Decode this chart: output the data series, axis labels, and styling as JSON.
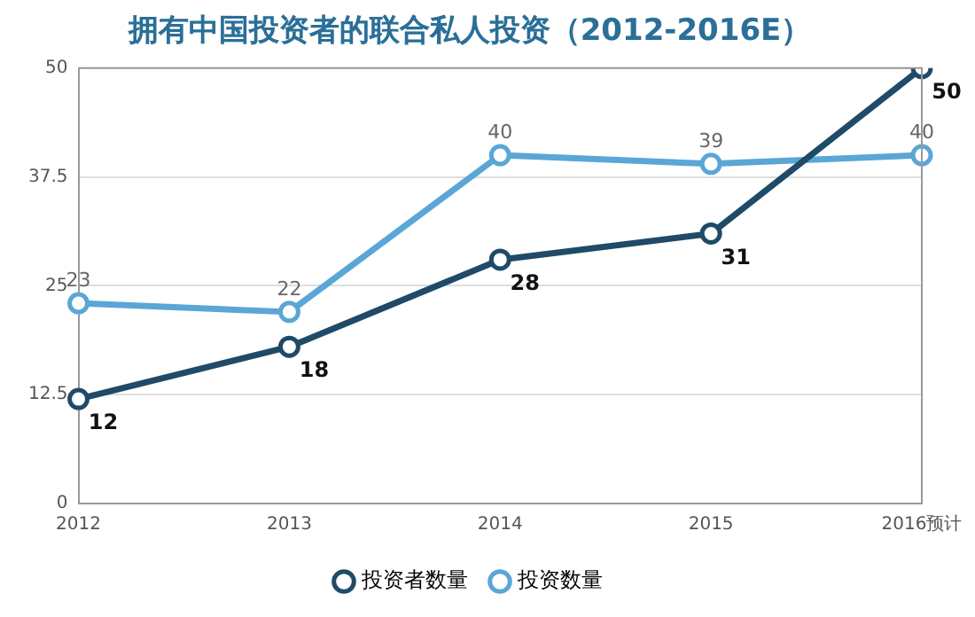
{
  "chart_data": {
    "type": "line",
    "title": "拥有中国投资者的联合私人投资（2012-2016E）",
    "categories": [
      "2012",
      "2013",
      "2014",
      "2015",
      "2016预计"
    ],
    "series": [
      {
        "name": "投资者数量",
        "color": "#1f4a68",
        "values": [
          12,
          18,
          28,
          31,
          50
        ]
      },
      {
        "name": "投资数量",
        "color": "#5aa6d6",
        "values": [
          23,
          22,
          40,
          39,
          40
        ]
      }
    ],
    "ylim": [
      0,
      50
    ],
    "yticks": [
      0,
      12.5,
      25,
      37.5,
      50
    ],
    "grid": "y",
    "legend": "bottom",
    "marker": "circle",
    "line_style": "solid",
    "data_labels": true
  }
}
